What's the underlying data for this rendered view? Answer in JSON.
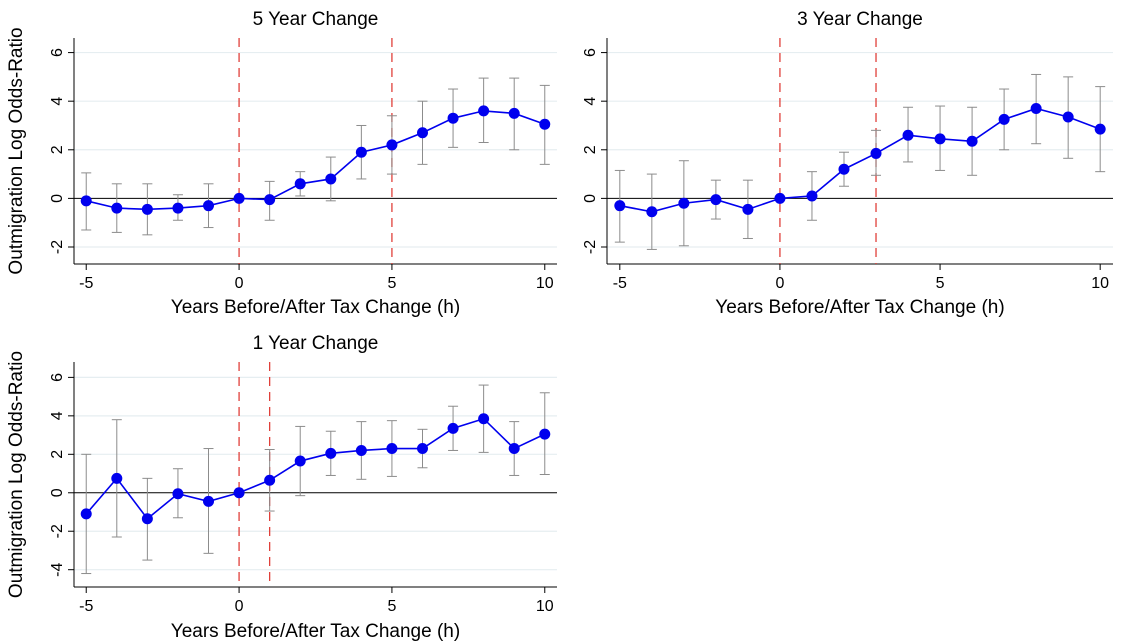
{
  "chart_data": [
    {
      "type": "line",
      "title": "5 Year Change",
      "xlabel": "Years Before/After Tax Change (h)",
      "ylabel": "Outmigration Log Odds-Ratio",
      "xlim": [
        -5.4,
        10.4
      ],
      "ylim": [
        -2.7,
        6.6
      ],
      "xticks": [
        -5,
        0,
        5,
        10
      ],
      "yticks": [
        -2,
        0,
        2,
        4,
        6
      ],
      "grid": true,
      "reference_line_y": 0,
      "vlines": [
        0,
        5
      ],
      "colors": {
        "series": "#0000ee",
        "ci": "#8c8c8c",
        "vline": "#e0403a",
        "zero": "#000000",
        "grid": "#e6eef1"
      },
      "series": [
        {
          "x": [
            -5,
            -4,
            -3,
            -2,
            -1,
            0,
            1,
            2,
            3,
            4,
            5,
            6,
            7,
            8,
            9,
            10
          ],
          "y": [
            -0.1,
            -0.4,
            -0.45,
            -0.4,
            -0.3,
            0.0,
            -0.05,
            0.6,
            0.8,
            1.9,
            2.2,
            2.7,
            3.3,
            3.6,
            3.5,
            3.05
          ],
          "lower": [
            -1.3,
            -1.4,
            -1.5,
            -0.9,
            -1.2,
            0.0,
            -0.9,
            0.1,
            -0.1,
            0.8,
            1.0,
            1.4,
            2.1,
            2.3,
            2.0,
            1.4
          ],
          "upper": [
            1.05,
            0.6,
            0.6,
            0.15,
            0.6,
            0.0,
            0.7,
            1.1,
            1.7,
            3.0,
            3.4,
            4.0,
            4.5,
            4.95,
            4.95,
            4.65
          ]
        }
      ]
    },
    {
      "type": "line",
      "title": "3 Year Change",
      "xlabel": "Years Before/After Tax Change (h)",
      "ylabel": "",
      "xlim": [
        -5.4,
        10.4
      ],
      "ylim": [
        -2.7,
        6.6
      ],
      "xticks": [
        -5,
        0,
        5,
        10
      ],
      "yticks": [
        -2,
        0,
        2,
        4,
        6
      ],
      "grid": true,
      "reference_line_y": 0,
      "vlines": [
        0,
        3
      ],
      "colors": {
        "series": "#0000ee",
        "ci": "#8c8c8c",
        "vline": "#e0403a",
        "zero": "#000000",
        "grid": "#e6eef1"
      },
      "series": [
        {
          "x": [
            -5,
            -4,
            -3,
            -2,
            -1,
            0,
            1,
            2,
            3,
            4,
            5,
            6,
            7,
            8,
            9,
            10
          ],
          "y": [
            -0.3,
            -0.55,
            -0.2,
            -0.05,
            -0.45,
            0.0,
            0.1,
            1.2,
            1.85,
            2.6,
            2.45,
            2.35,
            3.25,
            3.7,
            3.35,
            2.85
          ],
          "lower": [
            -1.8,
            -2.1,
            -1.95,
            -0.85,
            -1.65,
            0.0,
            -0.9,
            0.5,
            0.95,
            1.5,
            1.15,
            0.95,
            2.0,
            2.25,
            1.65,
            1.1
          ],
          "upper": [
            1.15,
            1.0,
            1.55,
            0.75,
            0.75,
            0.0,
            1.1,
            1.9,
            2.8,
            3.75,
            3.8,
            3.75,
            4.5,
            5.1,
            5.0,
            4.6
          ]
        }
      ]
    },
    {
      "type": "line",
      "title": "1 Year Change",
      "xlabel": "Years Before/After Tax Change (h)",
      "ylabel": "Outmigration Log Odds-Ratio",
      "xlim": [
        -5.4,
        10.4
      ],
      "ylim": [
        -4.9,
        6.8
      ],
      "xticks": [
        -5,
        0,
        5,
        10
      ],
      "yticks": [
        -4,
        -2,
        0,
        2,
        4,
        6
      ],
      "grid": true,
      "reference_line_y": 0,
      "vlines": [
        0,
        1
      ],
      "colors": {
        "series": "#0000ee",
        "ci": "#8c8c8c",
        "vline": "#e0403a",
        "zero": "#000000",
        "grid": "#e6eef1"
      },
      "series": [
        {
          "x": [
            -5,
            -4,
            -3,
            -2,
            -1,
            0,
            1,
            2,
            3,
            4,
            5,
            6,
            7,
            8,
            9,
            10
          ],
          "y": [
            -1.1,
            0.75,
            -1.35,
            -0.05,
            -0.45,
            0.0,
            0.65,
            1.65,
            2.05,
            2.2,
            2.3,
            2.3,
            3.35,
            3.85,
            2.3,
            3.05
          ],
          "lower": [
            -4.2,
            -2.3,
            -3.5,
            -1.3,
            -3.15,
            0.0,
            -0.95,
            -0.15,
            0.9,
            0.7,
            0.85,
            1.3,
            2.2,
            2.1,
            0.9,
            0.95
          ],
          "upper": [
            2.0,
            3.8,
            0.75,
            1.25,
            2.3,
            0.0,
            2.25,
            3.45,
            3.2,
            3.7,
            3.75,
            3.3,
            4.5,
            5.6,
            3.7,
            5.2
          ]
        }
      ]
    }
  ]
}
